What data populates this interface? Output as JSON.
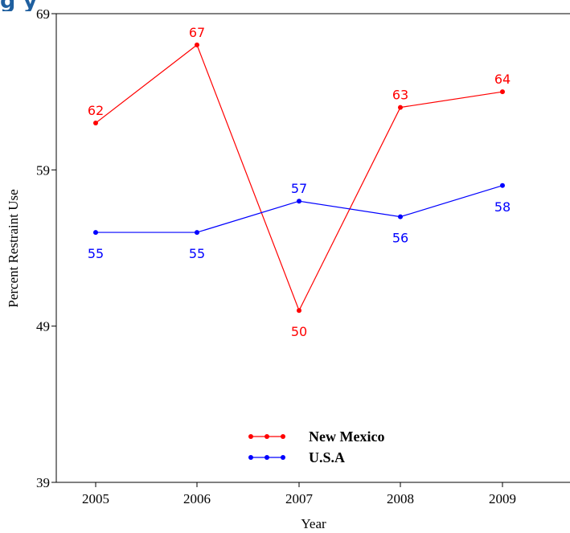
{
  "page_title_fragment": "g                                   y",
  "chart_data": {
    "type": "line",
    "categories": [
      "2005",
      "2006",
      "2007",
      "2008",
      "2009"
    ],
    "xlabel": "Year",
    "ylabel": "Percent Restraint Use",
    "ylim": [
      39,
      69
    ],
    "yticks": [
      39,
      49,
      59,
      69
    ],
    "legend_position": "bottom-center",
    "series": [
      {
        "name": "New Mexico",
        "color": "#ff0000",
        "values": [
          62,
          67,
          50,
          63,
          64
        ],
        "label_position": [
          "above",
          "above",
          "below",
          "above",
          "above"
        ]
      },
      {
        "name": "U.S.A",
        "color": "#0000ff",
        "values": [
          55,
          55,
          57,
          56,
          58
        ],
        "label_position": [
          "below",
          "below",
          "above",
          "below",
          "below"
        ]
      }
    ]
  }
}
